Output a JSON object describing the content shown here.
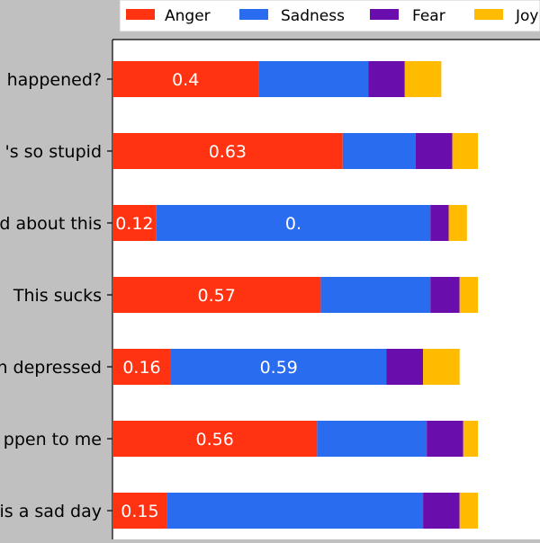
{
  "chart_data": {
    "type": "bar",
    "orientation": "horizontal",
    "stacked": true,
    "legend_position": "top",
    "grid": false,
    "categories": [
      "happened?",
      "'s so stupid",
      "d about this",
      "This sucks",
      "n depressed",
      "ppen to me",
      "is a sad day"
    ],
    "series": [
      {
        "name": "Anger",
        "color": "#ff3311",
        "values": [
          0.4,
          0.63,
          0.12,
          0.57,
          0.16,
          0.56,
          0.15
        ]
      },
      {
        "name": "Sadness",
        "color": "#2a6cf0",
        "values": [
          0.3,
          0.2,
          0.75,
          0.3,
          0.59,
          0.3,
          0.7
        ]
      },
      {
        "name": "Fear",
        "color": "#6a0dad",
        "values": [
          0.1,
          0.1,
          0.05,
          0.08,
          0.1,
          0.1,
          0.1
        ]
      },
      {
        "name": "Joy",
        "color": "#ffbb00",
        "values": [
          0.1,
          0.07,
          0.05,
          0.05,
          0.1,
          0.04,
          0.05
        ]
      }
    ],
    "labels": [
      [
        "0.4",
        "",
        "",
        ""
      ],
      [
        "0.63",
        "",
        "",
        ""
      ],
      [
        "0.12",
        "0.",
        "",
        ""
      ],
      [
        "0.57",
        "",
        "",
        ""
      ],
      [
        "0.16",
        "0.59",
        "",
        ""
      ],
      [
        "0.56",
        "",
        "",
        ""
      ],
      [
        "0.15",
        "",
        "",
        ""
      ]
    ],
    "xlim": [
      0,
      1.17
    ]
  }
}
